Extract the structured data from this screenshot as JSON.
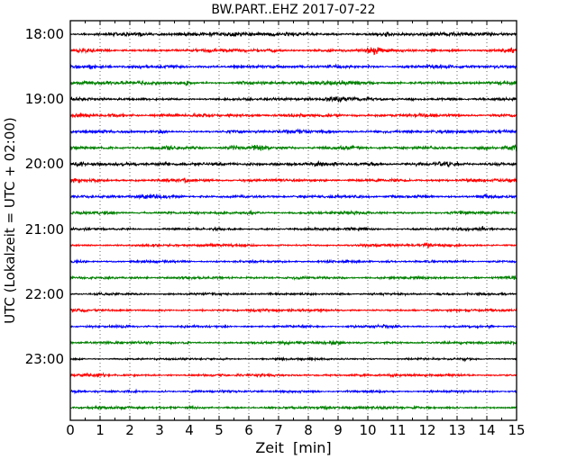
{
  "figure": {
    "title": "BW.PART..EHZ 2017-07-22",
    "xlabel": "Zeit  [min]",
    "ylabel": "UTC (Lokalzeit = UTC + 02:00)"
  },
  "chart_data": {
    "type": "line",
    "subtype": "seismogram-dayplot",
    "station": "BW.PART..EHZ",
    "date": "2017-07-22",
    "title": "BW.PART..EHZ 2017-07-22",
    "xlabel": "Zeit  [min]",
    "ylabel": "UTC (Lokalzeit = UTC + 02:00)",
    "xlim": [
      0,
      15
    ],
    "minutes_per_row": 15,
    "rows": 24,
    "grid": "vertical dotted lines at each minute, no horizontal gridlines",
    "x_ticks": [
      "0",
      "1",
      "2",
      "3",
      "4",
      "5",
      "6",
      "7",
      "8",
      "9",
      "10",
      "11",
      "12",
      "13",
      "14",
      "15"
    ],
    "y_tick_labels": [
      "18:00",
      "19:00",
      "20:00",
      "21:00",
      "22:00",
      "23:00"
    ],
    "color_cycle": [
      "#000000",
      "#ff0000",
      "#0000ff",
      "#008000"
    ],
    "grid_color": "#555555",
    "frame_color": "#000000",
    "traces": [
      {
        "start_utc": "18:00",
        "color": "#000000",
        "base_amp": 2.0,
        "bursts": [
          [
            1.3,
            0.25,
            0.8
          ],
          [
            1.9,
            0.3,
            0.7
          ],
          [
            2.4,
            0.2,
            0.6
          ],
          [
            5.6,
            0.3,
            0.6
          ],
          [
            6.2,
            0.25,
            0.7
          ],
          [
            7.3,
            0.8,
            0.5
          ],
          [
            8.3,
            0.4,
            0.4
          ],
          [
            10.62,
            0.1,
            1.6
          ]
        ]
      },
      {
        "start_utc": "18:15",
        "color": "#ff0000",
        "base_amp": 1.9,
        "bursts": [
          [
            0.4,
            0.5,
            0.5
          ],
          [
            6.9,
            0.4,
            0.4
          ],
          [
            10.15,
            0.25,
            1.2
          ],
          [
            12.2,
            0.08,
            1.5
          ],
          [
            14.85,
            0.15,
            0.9
          ]
        ]
      },
      {
        "start_utc": "18:30",
        "color": "#0000ff",
        "base_amp": 1.8,
        "bursts": [
          [
            0.72,
            0.1,
            1.6
          ],
          [
            1.95,
            0.25,
            0.7
          ],
          [
            7.2,
            0.3,
            0.7
          ],
          [
            9.0,
            0.3,
            0.5
          ],
          [
            12.6,
            0.5,
            0.7
          ],
          [
            13.8,
            0.25,
            0.8
          ]
        ]
      },
      {
        "start_utc": "18:45",
        "color": "#008000",
        "base_amp": 2.0,
        "bursts": [
          [
            2.8,
            0.8,
            0.45
          ],
          [
            3.87,
            0.13,
            1.5
          ],
          [
            5.9,
            0.2,
            0.9
          ],
          [
            8.9,
            0.8,
            0.35
          ],
          [
            12.9,
            0.3,
            0.6
          ]
        ]
      },
      {
        "start_utc": "19:00",
        "color": "#000000",
        "base_amp": 1.7,
        "bursts": [
          [
            9.0,
            0.4,
            0.7
          ],
          [
            10.25,
            0.6,
            0.7
          ],
          [
            11.4,
            0.2,
            1.0
          ],
          [
            12.9,
            0.3,
            0.5
          ]
        ]
      },
      {
        "start_utc": "19:15",
        "color": "#ff0000",
        "base_amp": 1.9,
        "bursts": [
          [
            1.8,
            0.5,
            0.5
          ],
          [
            5.6,
            0.3,
            0.6
          ],
          [
            9.7,
            0.25,
            0.5
          ],
          [
            14.3,
            0.15,
            0.8
          ]
        ]
      },
      {
        "start_utc": "19:30",
        "color": "#0000ff",
        "base_amp": 1.7,
        "bursts": [
          [
            3.0,
            0.25,
            0.8
          ],
          [
            7.85,
            0.2,
            0.9
          ],
          [
            8.6,
            0.25,
            0.7
          ],
          [
            10.9,
            0.6,
            0.6
          ],
          [
            14.6,
            0.2,
            0.6
          ]
        ]
      },
      {
        "start_utc": "19:45",
        "color": "#008000",
        "base_amp": 1.9,
        "bursts": [
          [
            3.25,
            0.15,
            0.9
          ],
          [
            5.5,
            0.18,
            1.3
          ],
          [
            6.3,
            0.3,
            0.7
          ],
          [
            9.3,
            0.4,
            0.4
          ],
          [
            13.9,
            0.3,
            0.6
          ],
          [
            14.9,
            0.15,
            0.8
          ]
        ]
      },
      {
        "start_utc": "20:00",
        "color": "#000000",
        "base_amp": 1.9,
        "bursts": [
          [
            0.3,
            0.15,
            0.8
          ],
          [
            2.6,
            0.6,
            0.7
          ],
          [
            3.3,
            0.3,
            0.6
          ],
          [
            6.85,
            0.25,
            0.9
          ],
          [
            8.35,
            0.25,
            0.7
          ],
          [
            9.95,
            0.4,
            1.0
          ],
          [
            12.55,
            0.3,
            0.9
          ],
          [
            14.3,
            0.3,
            0.5
          ]
        ]
      },
      {
        "start_utc": "20:15",
        "color": "#ff0000",
        "base_amp": 1.8,
        "bursts": [
          [
            0.15,
            0.25,
            0.8
          ],
          [
            3.87,
            0.08,
            1.3
          ],
          [
            8.0,
            0.3,
            0.4
          ],
          [
            14.85,
            0.15,
            0.7
          ]
        ]
      },
      {
        "start_utc": "20:30",
        "color": "#0000ff",
        "base_amp": 1.7,
        "bursts": [
          [
            2.0,
            0.7,
            0.55
          ],
          [
            2.9,
            0.4,
            0.5
          ],
          [
            9.8,
            0.35,
            0.4
          ],
          [
            13.9,
            0.25,
            0.45
          ]
        ]
      },
      {
        "start_utc": "20:45",
        "color": "#008000",
        "base_amp": 1.6,
        "bursts": [
          [
            3.4,
            0.25,
            0.5
          ],
          [
            6.05,
            0.18,
            0.9
          ],
          [
            9.3,
            0.3,
            0.4
          ],
          [
            13.6,
            0.3,
            0.4
          ]
        ]
      },
      {
        "start_utc": "21:00",
        "color": "#000000",
        "base_amp": 1.4,
        "bursts": [
          [
            7.6,
            0.4,
            0.5
          ],
          [
            9.6,
            0.3,
            0.4
          ],
          [
            12.4,
            0.2,
            0.5
          ],
          [
            13.87,
            0.1,
            2.2
          ]
        ]
      },
      {
        "start_utc": "21:15",
        "color": "#ff0000",
        "base_amp": 1.5,
        "bursts": [
          [
            2.9,
            0.1,
            0.8
          ],
          [
            10.3,
            0.4,
            0.4
          ],
          [
            12.0,
            0.08,
            1.9
          ]
        ]
      },
      {
        "start_utc": "21:30",
        "color": "#0000ff",
        "base_amp": 1.4,
        "bursts": [
          [
            2.2,
            0.3,
            0.5
          ],
          [
            11.0,
            0.5,
            0.4
          ],
          [
            14.5,
            0.3,
            0.4
          ]
        ]
      },
      {
        "start_utc": "21:45",
        "color": "#008000",
        "base_amp": 1.5,
        "bursts": [
          [
            2.0,
            0.3,
            0.4
          ],
          [
            5.8,
            0.4,
            0.4
          ],
          [
            9.0,
            0.4,
            0.35
          ],
          [
            14.9,
            0.1,
            1.0
          ]
        ]
      },
      {
        "start_utc": "22:00",
        "color": "#000000",
        "base_amp": 1.3,
        "bursts": [
          [
            5.0,
            0.3,
            0.5
          ],
          [
            5.9,
            0.5,
            0.5
          ],
          [
            9.0,
            0.4,
            0.35
          ],
          [
            12.5,
            0.3,
            0.35
          ]
        ]
      },
      {
        "start_utc": "22:15",
        "color": "#ff0000",
        "base_amp": 1.4,
        "bursts": [
          [
            0.2,
            0.3,
            0.4
          ],
          [
            4.45,
            0.08,
            1.2
          ],
          [
            6.6,
            0.3,
            0.35
          ],
          [
            12.4,
            0.3,
            0.3
          ]
        ]
      },
      {
        "start_utc": "22:30",
        "color": "#0000ff",
        "base_amp": 1.4,
        "bursts": [
          [
            2.0,
            0.4,
            0.3
          ],
          [
            7.9,
            0.1,
            1.1
          ],
          [
            10.6,
            0.6,
            0.35
          ],
          [
            14.1,
            0.1,
            1.0
          ]
        ]
      },
      {
        "start_utc": "22:45",
        "color": "#008000",
        "base_amp": 1.5,
        "bursts": [
          [
            5.2,
            0.3,
            0.4
          ],
          [
            7.2,
            0.12,
            1.1
          ],
          [
            8.85,
            0.25,
            0.7
          ],
          [
            11.0,
            0.4,
            0.3
          ]
        ]
      },
      {
        "start_utc": "23:00",
        "color": "#000000",
        "base_amp": 1.2,
        "bursts": [
          [
            5.3,
            0.5,
            0.4
          ],
          [
            7.1,
            0.12,
            0.9
          ],
          [
            9.0,
            0.3,
            0.3
          ],
          [
            13.3,
            0.12,
            1.0
          ]
        ]
      },
      {
        "start_utc": "23:15",
        "color": "#ff0000",
        "base_amp": 1.4,
        "bursts": [
          [
            0.5,
            0.12,
            1.1
          ],
          [
            1.05,
            0.2,
            1.2
          ],
          [
            9.55,
            0.2,
            0.8
          ],
          [
            9.82,
            0.1,
            1.9
          ]
        ]
      },
      {
        "start_utc": "23:30",
        "color": "#0000ff",
        "base_amp": 1.4,
        "bursts": [
          [
            0.3,
            0.25,
            0.7
          ],
          [
            0.85,
            0.1,
            1.6
          ],
          [
            5.9,
            0.9,
            0.4
          ],
          [
            13.5,
            0.3,
            0.35
          ]
        ]
      },
      {
        "start_utc": "23:45",
        "color": "#008000",
        "base_amp": 1.5,
        "bursts": [
          [
            4.0,
            0.12,
            0.9
          ],
          [
            5.5,
            0.25,
            0.7
          ],
          [
            8.5,
            0.35,
            0.6
          ],
          [
            11.65,
            0.25,
            0.8
          ],
          [
            14.0,
            0.3,
            0.4
          ]
        ]
      }
    ]
  }
}
